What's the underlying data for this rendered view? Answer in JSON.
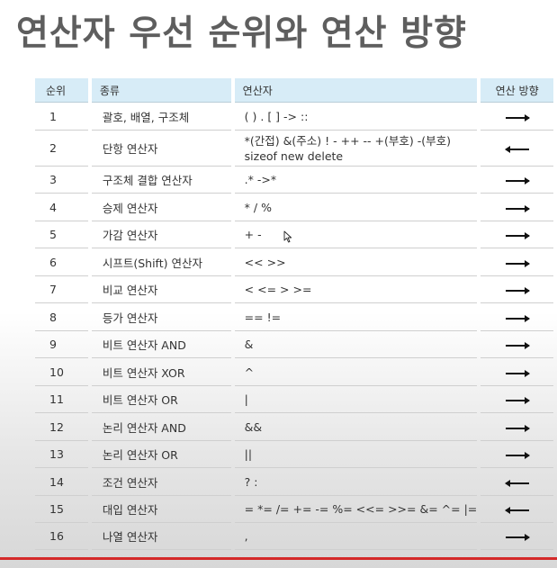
{
  "title": "연산자 우선 순위와 연산 방향",
  "table": {
    "headers": {
      "rank": "순위",
      "kind": "종류",
      "operators": "연산자",
      "direction": "연산 방향"
    },
    "rows": [
      {
        "rank": "1",
        "kind": "괄호, 배열, 구조체",
        "operators": "( ) . [ ] -> ::",
        "direction": "right"
      },
      {
        "rank": "2",
        "kind": "단항 연산자",
        "operators": "*(간접) &(주소) ! - ++ -- +(부호) -(부호) sizeof new delete",
        "direction": "left"
      },
      {
        "rank": "3",
        "kind": "구조체 결합 연산자",
        "operators": ".* ->*",
        "direction": "right"
      },
      {
        "rank": "4",
        "kind": "승제 연산자",
        "operators": "* / %",
        "direction": "right"
      },
      {
        "rank": "5",
        "kind": "가감 연산자",
        "operators": "+ -",
        "direction": "right"
      },
      {
        "rank": "6",
        "kind": "시프트(Shift) 연산자",
        "operators": "<< >>",
        "direction": "right"
      },
      {
        "rank": "7",
        "kind": "비교 연산자",
        "operators": "< <= > >=",
        "direction": "right"
      },
      {
        "rank": "8",
        "kind": "등가 연산자",
        "operators": "== !=",
        "direction": "right"
      },
      {
        "rank": "9",
        "kind": "비트 연산자 AND",
        "operators": "&",
        "direction": "right"
      },
      {
        "rank": "10",
        "kind": "비트 연산자 XOR",
        "operators": "^",
        "direction": "right"
      },
      {
        "rank": "11",
        "kind": "비트 연산자 OR",
        "operators": "|",
        "direction": "right"
      },
      {
        "rank": "12",
        "kind": "논리 연산자 AND",
        "operators": "&&",
        "direction": "right"
      },
      {
        "rank": "13",
        "kind": "논리 연산자 OR",
        "operators": "||",
        "direction": "right"
      },
      {
        "rank": "14",
        "kind": "조건 연산자",
        "operators": "? :",
        "direction": "left"
      },
      {
        "rank": "15",
        "kind": "대입 연산자",
        "operators": "= *= /= += -= %= <<= >>= &= ^= |=",
        "direction": "left"
      },
      {
        "rank": "16",
        "kind": "나열 연산자",
        "operators": ",",
        "direction": "right"
      }
    ]
  },
  "icons": {
    "right_arrow": "right-arrow-icon",
    "left_arrow": "left-arrow-icon",
    "cursor": "mouse-pointer-icon"
  },
  "colors": {
    "title": "#5e5e5e",
    "header_bg": "#d7ecf7",
    "bottom_line": "#d42a2a",
    "arrow": "#111111"
  }
}
